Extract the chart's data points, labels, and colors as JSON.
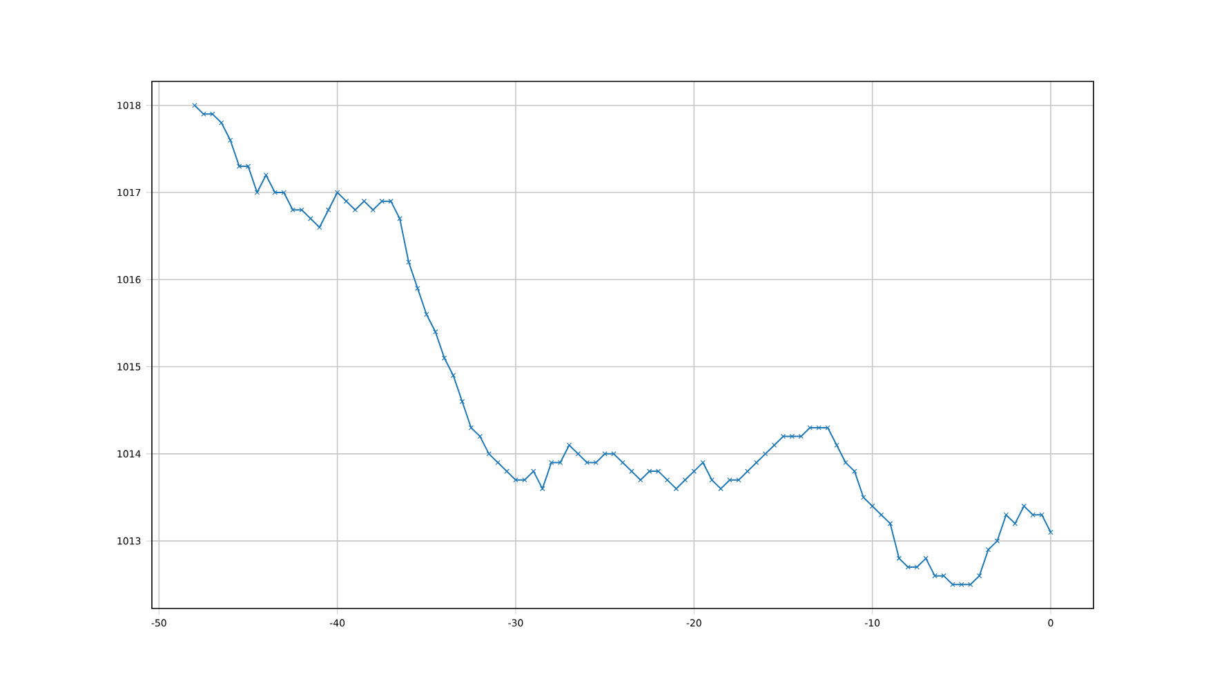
{
  "chart_data": {
    "type": "line",
    "x": [
      -48,
      -47.5,
      -47,
      -46.5,
      -46,
      -45.5,
      -45,
      -44.5,
      -44,
      -43.5,
      -43,
      -42.5,
      -42,
      -41.5,
      -41,
      -40.5,
      -40,
      -39.5,
      -39,
      -38.5,
      -38,
      -37.5,
      -37,
      -36.5,
      -36,
      -35.5,
      -35,
      -34.5,
      -34,
      -33.5,
      -33,
      -32.5,
      -32,
      -31.5,
      -31,
      -30.5,
      -30,
      -29.5,
      -29,
      -28.5,
      -28,
      -27.5,
      -27,
      -26.5,
      -26,
      -25.5,
      -25,
      -24.5,
      -24,
      -23.5,
      -23,
      -22.5,
      -22,
      -21.5,
      -21,
      -20.5,
      -20,
      -19.5,
      -19,
      -18.5,
      -18,
      -17.5,
      -17,
      -16.5,
      -16,
      -15.5,
      -15,
      -14.5,
      -14,
      -13.5,
      -13,
      -12.5,
      -12,
      -11.5,
      -11,
      -10.5,
      -10,
      -9.5,
      -9,
      -8.5,
      -8,
      -7.5,
      -7,
      -6.5,
      -6,
      -5.5,
      -5,
      -4.5,
      -4,
      -3.5,
      -3,
      -2.5,
      -2,
      -1.5,
      -1,
      -0.5,
      0
    ],
    "series": [
      {
        "color": "#1f77b4",
        "values": [
          1018.0,
          1017.9,
          1017.9,
          1017.8,
          1017.6,
          1017.3,
          1017.3,
          1017.0,
          1017.2,
          1017.0,
          1017.0,
          1016.8,
          1016.8,
          1016.7,
          1016.6,
          1016.8,
          1017.0,
          1016.9,
          1016.8,
          1016.9,
          1016.8,
          1016.9,
          1016.9,
          1016.7,
          1016.2,
          1015.9,
          1015.6,
          1015.4,
          1015.1,
          1014.9,
          1014.6,
          1014.3,
          1014.2,
          1014.0,
          1013.9,
          1013.8,
          1013.7,
          1013.7,
          1013.8,
          1013.6,
          1013.9,
          1013.9,
          1014.1,
          1014.0,
          1013.9,
          1013.9,
          1014.0,
          1014.0,
          1013.9,
          1013.8,
          1013.7,
          1013.8,
          1013.8,
          1013.7,
          1013.6,
          1013.7,
          1013.8,
          1013.9,
          1013.7,
          1013.6,
          1013.7,
          1013.7,
          1013.8,
          1013.9,
          1014.0,
          1014.1,
          1014.2,
          1014.2,
          1014.2,
          1014.3,
          1014.3,
          1014.3,
          1014.1,
          1013.9,
          1013.8,
          1013.5,
          1013.4,
          1013.3,
          1013.2,
          1012.8,
          1012.7,
          1012.7,
          1012.8,
          1012.6,
          1012.6,
          1012.5,
          1012.5,
          1012.5,
          1012.6,
          1012.9,
          1013.0,
          1013.3,
          1013.2,
          1013.4,
          1013.3,
          1013.3,
          1013.1
        ]
      }
    ],
    "xlim": [
      -50.4,
      2.4
    ],
    "ylim": [
      1012.225,
      1018.275
    ],
    "xticks": [
      -50,
      -40,
      -30,
      -20,
      -10,
      0
    ],
    "yticks": [
      1013,
      1014,
      1015,
      1016,
      1017,
      1018
    ],
    "grid": true,
    "marker": "cross",
    "line_style": "solid"
  }
}
